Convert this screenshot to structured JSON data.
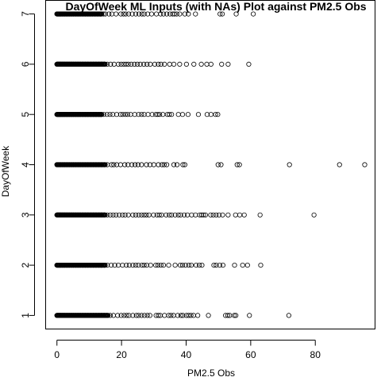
{
  "chart_data": {
    "type": "scatter",
    "title": "DayOfWeek ML Inputs (with NAs) Plot against PM2.5 Obs",
    "xlabel": "PM2.5 Obs",
    "ylabel": "DayOfWeek",
    "xlim": [
      -3.5,
      98.5
    ],
    "ylim": [
      0.73,
      7.27
    ],
    "x_ticks": [
      0,
      20,
      40,
      60,
      80
    ],
    "y_ticks": [
      1,
      2,
      3,
      4,
      5,
      6,
      7
    ],
    "grid": false,
    "marker": "open-circle",
    "dense_range_note_per_day": [
      16,
      15,
      15,
      15,
      14,
      15,
      14
    ],
    "series": [
      {
        "day": 1,
        "x": [
          0.0,
          0.3,
          0.6,
          0.9,
          1.2,
          1.6,
          2.0,
          2.4,
          2.9,
          3.4,
          3.9,
          4.5,
          5.1,
          5.8,
          6.5,
          7.2,
          8.0,
          8.8,
          9.6,
          10.5,
          11.3,
          12.1,
          13.0,
          13.8,
          14.6,
          15.5,
          16.5,
          17.5,
          18.8,
          19.9,
          20.8,
          21.6,
          22.3,
          23.5,
          24.6,
          25.3,
          26.2,
          27.1,
          28.0,
          28.8,
          30.7,
          31.4,
          32.0,
          33.3,
          34.6,
          35.3,
          36.1,
          37.4,
          38.4,
          39.0,
          40.1,
          40.8,
          41.5,
          42.3,
          43.6,
          46.9,
          52.2,
          52.9,
          53.5,
          54.9,
          55.4,
          59.6,
          71.8
        ]
      },
      {
        "day": 2,
        "x": [
          0.0,
          0.3,
          0.6,
          0.9,
          1.2,
          1.6,
          2.0,
          2.4,
          2.9,
          3.4,
          3.9,
          4.5,
          5.1,
          5.8,
          6.5,
          7.2,
          8.0,
          8.8,
          9.6,
          10.5,
          11.3,
          12.1,
          13.0,
          13.8,
          14.7,
          15.6,
          16.8,
          17.9,
          19.0,
          20.3,
          21.5,
          22.4,
          23.5,
          24.4,
          25.2,
          26.3,
          27.0,
          27.8,
          29.0,
          30.6,
          31.3,
          32.2,
          33.0,
          34.6,
          36.6,
          38.2,
          38.9,
          39.8,
          40.8,
          41.6,
          43.1,
          44.1,
          44.9,
          48.6,
          49.3,
          50.4,
          51.4,
          55.0,
          57.5,
          59.0,
          63.1
        ]
      },
      {
        "day": 3,
        "x": [
          0.0,
          0.3,
          0.6,
          0.9,
          1.2,
          1.6,
          2.0,
          2.4,
          2.9,
          3.4,
          3.9,
          4.5,
          5.1,
          5.8,
          6.5,
          7.2,
          8.0,
          8.8,
          9.6,
          10.5,
          11.3,
          12.1,
          13.0,
          13.8,
          14.7,
          15.6,
          16.5,
          17.4,
          18.3,
          19.3,
          20.3,
          21.1,
          22.1,
          23.5,
          24.4,
          25.3,
          26.2,
          27.0,
          27.7,
          28.5,
          29.9,
          31.0,
          31.7,
          32.4,
          33.8,
          34.8,
          35.5,
          36.6,
          37.6,
          38.3,
          39.4,
          40.4,
          41.7,
          42.9,
          44.2,
          44.8,
          45.4,
          46.0,
          47.6,
          48.4,
          49.3,
          50.2,
          51.3,
          53.0,
          55.3,
          56.6,
          58.0,
          62.9,
          79.6
        ]
      },
      {
        "day": 4,
        "x": [
          0.0,
          0.3,
          0.6,
          0.9,
          1.2,
          1.6,
          2.0,
          2.4,
          2.9,
          3.4,
          3.9,
          4.5,
          5.1,
          5.8,
          6.5,
          7.2,
          8.0,
          8.8,
          9.6,
          10.5,
          11.3,
          12.1,
          13.0,
          13.8,
          14.7,
          15.6,
          16.9,
          17.6,
          18.5,
          19.7,
          21.0,
          22.0,
          23.2,
          24.2,
          25.1,
          26.2,
          27.7,
          28.8,
          30.0,
          31.4,
          32.5,
          33.2,
          34.0,
          36.2,
          37.2,
          39.0,
          39.6,
          49.9,
          50.8,
          55.8,
          56.5,
          72.0,
          87.5,
          95.3
        ]
      },
      {
        "day": 5,
        "x": [
          0.0,
          0.3,
          0.6,
          0.9,
          1.2,
          1.6,
          2.0,
          2.4,
          2.9,
          3.4,
          3.9,
          4.5,
          5.1,
          5.8,
          6.5,
          7.2,
          8.0,
          8.8,
          9.6,
          10.5,
          11.3,
          12.1,
          13.0,
          13.8,
          14.5,
          15.5,
          16.4,
          17.3,
          18.5,
          19.7,
          20.4,
          21.2,
          21.9,
          22.8,
          24.1,
          25.3,
          26.2,
          27.0,
          28.2,
          29.5,
          30.6,
          31.2,
          31.8,
          32.8,
          34.2,
          34.8,
          35.5,
          37.6,
          38.9,
          40.6,
          43.8,
          46.5,
          47.7,
          49.1,
          49.8
        ]
      },
      {
        "day": 6,
        "x": [
          0.0,
          0.3,
          0.6,
          0.9,
          1.2,
          1.6,
          2.0,
          2.4,
          2.9,
          3.4,
          3.9,
          4.5,
          5.1,
          5.8,
          6.5,
          7.2,
          8.0,
          8.8,
          9.6,
          10.5,
          11.3,
          12.1,
          13.0,
          13.8,
          14.7,
          15.6,
          16.6,
          17.7,
          19.0,
          19.9,
          20.7,
          21.4,
          22.1,
          23.0,
          24.0,
          24.9,
          25.8,
          26.9,
          27.9,
          28.9,
          30.3,
          31.4,
          32.2,
          33.3,
          34.9,
          36.2,
          38.0,
          40.1,
          42.4,
          44.7,
          46.4,
          47.7,
          51.0,
          53.0,
          59.4
        ]
      },
      {
        "day": 7,
        "x": [
          0.0,
          0.3,
          0.6,
          0.9,
          1.2,
          1.6,
          2.0,
          2.4,
          2.9,
          3.4,
          3.9,
          4.5,
          5.1,
          5.8,
          6.5,
          7.2,
          8.0,
          8.8,
          9.6,
          10.3,
          11.0,
          11.8,
          12.6,
          13.4,
          14.4,
          15.0,
          16.1,
          17.0,
          18.3,
          19.8,
          20.6,
          21.3,
          22.2,
          23.3,
          24.4,
          25.4,
          26.3,
          27.0,
          28.1,
          29.3,
          30.8,
          32.1,
          33.0,
          34.0,
          35.0,
          35.8,
          36.4,
          37.1,
          38.0,
          39.6,
          40.7,
          42.9,
          50.5,
          51.2,
          55.5,
          60.8
        ]
      }
    ]
  }
}
